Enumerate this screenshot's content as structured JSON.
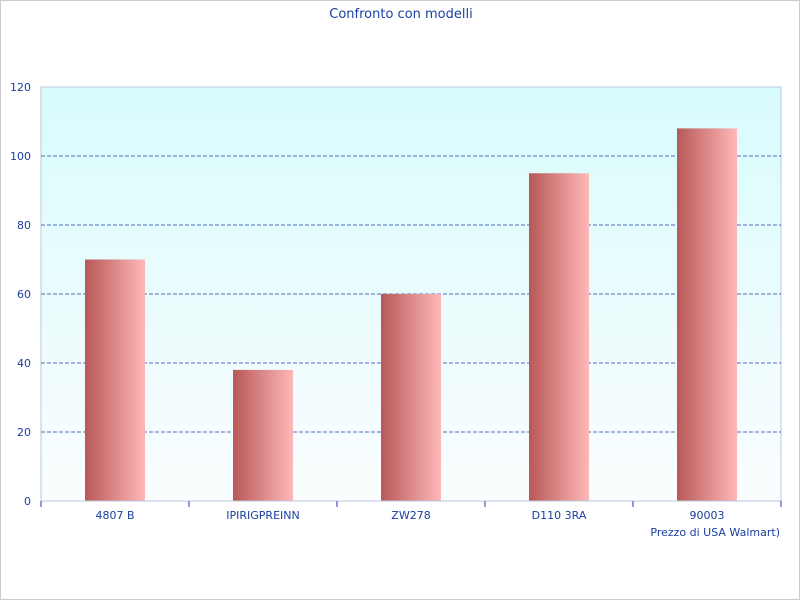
{
  "chart_data": {
    "type": "bar",
    "title": "Confronto con modelli",
    "xlabel": "Prezzo di USA Walmart)",
    "ylabel": "",
    "categories": [
      "4807 B",
      "IPIRIGPREINN",
      "ZW278",
      "D110 3RA",
      "90003"
    ],
    "values": [
      70,
      38,
      60,
      95,
      108
    ],
    "ylim": [
      0,
      120
    ],
    "yticks": [
      "0",
      "20",
      "40",
      "60",
      "80",
      "100",
      "120"
    ],
    "grid": true,
    "legend": "none"
  },
  "colors": {
    "text": "#1a3fa0",
    "bar_dark": "#b85858",
    "bar_light": "#ffb8b8",
    "plot_bg_top": "#d8fbfc",
    "plot_bg_bottom": "#fbfdfe",
    "grid": "#1a3fa0",
    "axis": "#b8c8e0"
  }
}
